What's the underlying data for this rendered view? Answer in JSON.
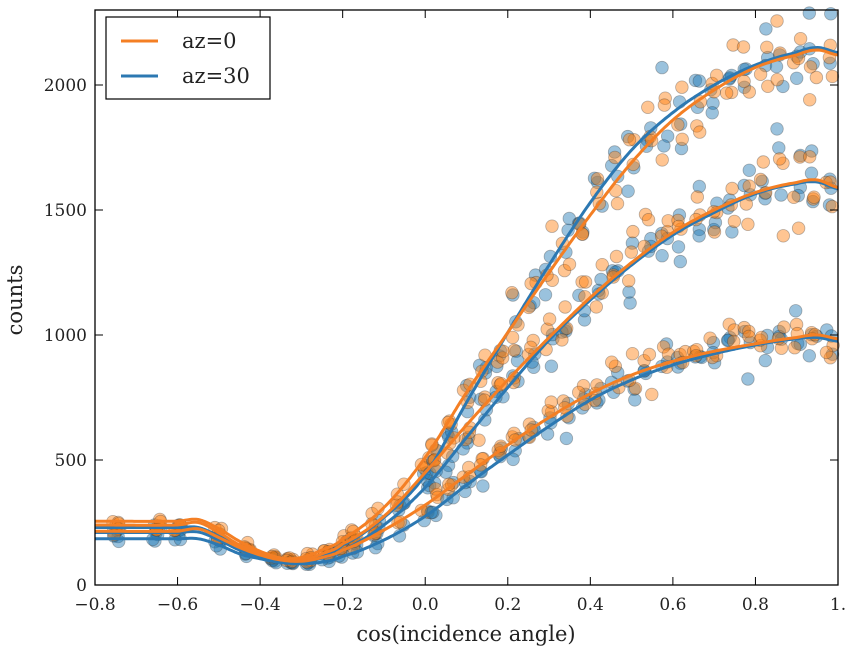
{
  "chart_data": {
    "type": "scatter",
    "title": "",
    "xlabel": "cos(incidence angle)",
    "ylabel": "counts",
    "xlim": [
      -0.8,
      1.0
    ],
    "ylim": [
      0,
      2300
    ],
    "grid": false,
    "legend_position": "top-left",
    "x_ticks": [
      {
        "value": -0.8,
        "label": "−0.8"
      },
      {
        "value": -0.6,
        "label": "−0.6"
      },
      {
        "value": -0.4,
        "label": "−0.4"
      },
      {
        "value": -0.2,
        "label": "−0.2"
      },
      {
        "value": 0.0,
        "label": "0.0"
      },
      {
        "value": 0.2,
        "label": "0.2"
      },
      {
        "value": 0.4,
        "label": "0.4"
      },
      {
        "value": 0.6,
        "label": "0.6"
      },
      {
        "value": 0.8,
        "label": "0.8"
      },
      {
        "value": 1.0,
        "label": "1."
      }
    ],
    "y_ticks": [
      {
        "value": 0,
        "label": "0"
      },
      {
        "value": 500,
        "label": "500"
      },
      {
        "value": 1000,
        "label": "1000"
      },
      {
        "value": 1500,
        "label": "1500"
      },
      {
        "value": 2000,
        "label": "2000"
      }
    ],
    "x": [
      -0.8,
      -0.6,
      -0.55,
      -0.5,
      -0.45,
      -0.4,
      -0.35,
      -0.3,
      -0.25,
      -0.2,
      -0.1,
      0.0,
      0.1,
      0.2,
      0.3,
      0.4,
      0.5,
      0.6,
      0.7,
      0.8,
      0.9,
      0.95,
      1.0
    ],
    "series": [
      {
        "name": "az=0",
        "color": "#ff7f0e",
        "line_color": "#f47f24",
        "group": "high",
        "values": [
          255,
          255,
          262,
          225,
          175,
          135,
          108,
          110,
          140,
          185,
          310,
          510,
          770,
          1010,
          1250,
          1480,
          1690,
          1860,
          1980,
          2070,
          2120,
          2140,
          2120
        ]
      },
      {
        "name": "az=0",
        "color": "#ff7f0e",
        "line_color": "#f47f24",
        "group": "mid",
        "values": [
          240,
          240,
          250,
          210,
          160,
          128,
          104,
          100,
          125,
          165,
          275,
          450,
          640,
          820,
          990,
          1150,
          1290,
          1410,
          1500,
          1570,
          1610,
          1620,
          1590
        ]
      },
      {
        "name": "az=0",
        "color": "#ff7f0e",
        "line_color": "#f47f24",
        "group": "low",
        "values": [
          215,
          215,
          225,
          190,
          150,
          120,
          100,
          95,
          110,
          140,
          220,
          320,
          440,
          560,
          670,
          765,
          840,
          895,
          935,
          965,
          990,
          1000,
          985
        ]
      },
      {
        "name": "az=30",
        "color": "#1f77b4",
        "line_color": "#2c78b2",
        "group": "high",
        "values": [
          230,
          230,
          230,
          195,
          150,
          118,
          100,
          98,
          118,
          160,
          270,
          440,
          730,
          1010,
          1280,
          1530,
          1740,
          1890,
          2000,
          2080,
          2130,
          2150,
          2130
        ]
      },
      {
        "name": "az=30",
        "color": "#1f77b4",
        "line_color": "#2c78b2",
        "group": "mid",
        "values": [
          210,
          210,
          212,
          180,
          140,
          112,
          96,
          92,
          108,
          140,
          240,
          390,
          590,
          790,
          980,
          1140,
          1280,
          1400,
          1490,
          1565,
          1605,
          1612,
          1585
        ]
      },
      {
        "name": "az=30",
        "color": "#1f77b4",
        "line_color": "#2c78b2",
        "group": "low",
        "values": [
          185,
          185,
          185,
          160,
          125,
          105,
          90,
          85,
          92,
          115,
          180,
          275,
          400,
          520,
          635,
          740,
          820,
          880,
          925,
          960,
          985,
          990,
          975
        ]
      }
    ],
    "scatter_x_groups": [
      -0.75,
      -0.65,
      -0.6,
      -0.5,
      -0.43,
      -0.37,
      -0.33,
      -0.28,
      -0.24,
      -0.2,
      -0.17,
      -0.12,
      -0.06,
      0.0,
      0.02,
      0.06,
      0.1,
      0.14,
      0.18,
      0.22,
      0.26,
      0.3,
      0.34,
      0.38,
      0.42,
      0.46,
      0.5,
      0.54,
      0.58,
      0.62,
      0.66,
      0.7,
      0.74,
      0.78,
      0.82,
      0.86,
      0.9,
      0.94,
      0.98
    ],
    "scatter_noise_fraction": 0.06,
    "legend": [
      {
        "label": "az=0",
        "color": "#f47f24"
      },
      {
        "label": "az=30",
        "color": "#2c78b2"
      }
    ]
  }
}
